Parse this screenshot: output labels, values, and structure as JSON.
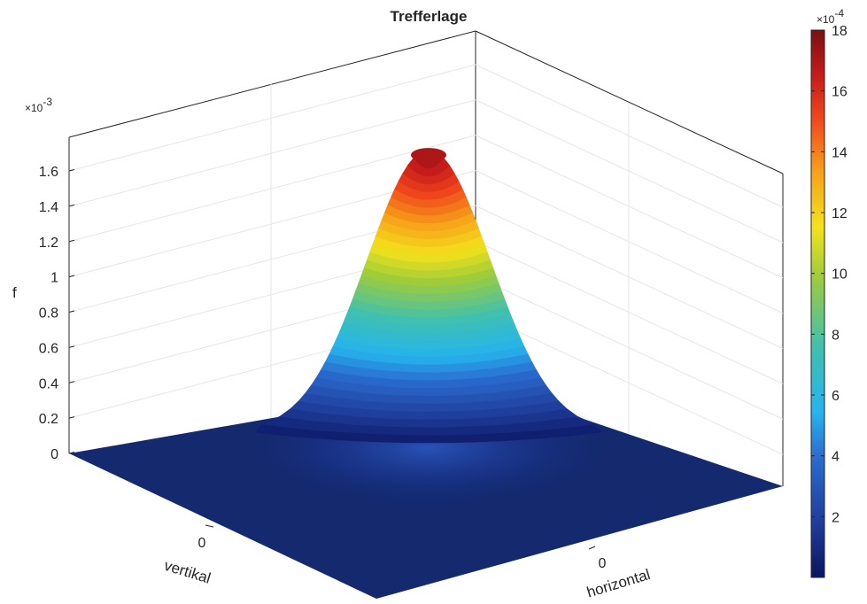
{
  "chart_data": {
    "type": "surface",
    "title": "Trefferlage",
    "xlabel": "horizontal",
    "ylabel": "vertikal",
    "zlabel": "f",
    "x_ticks": [
      "0"
    ],
    "y_ticks": [
      "0"
    ],
    "z_ticks": [
      "0",
      "0.2",
      "0.4",
      "0.6",
      "0.8",
      "1",
      "1.2",
      "1.4",
      "1.6"
    ],
    "z_tick_values": [
      0,
      0.2,
      0.4,
      0.6,
      0.8,
      1.0,
      1.2,
      1.4,
      1.6
    ],
    "z_exponent_label": "×10",
    "z_exponent_power": "-3",
    "z_scale": 0.001,
    "zlim": [
      0,
      0.0018
    ],
    "peak_value": 0.0017,
    "grid": true,
    "colormap": "jet",
    "colorbar": {
      "placement": "right",
      "ticks": [
        "2",
        "4",
        "6",
        "8",
        "10",
        "12",
        "14",
        "16",
        "18"
      ],
      "tick_values": [
        2,
        4,
        6,
        8,
        10,
        12,
        14,
        16,
        18
      ],
      "exponent_label": "×10",
      "exponent_power": "-4",
      "range": [
        0,
        18
      ]
    }
  }
}
